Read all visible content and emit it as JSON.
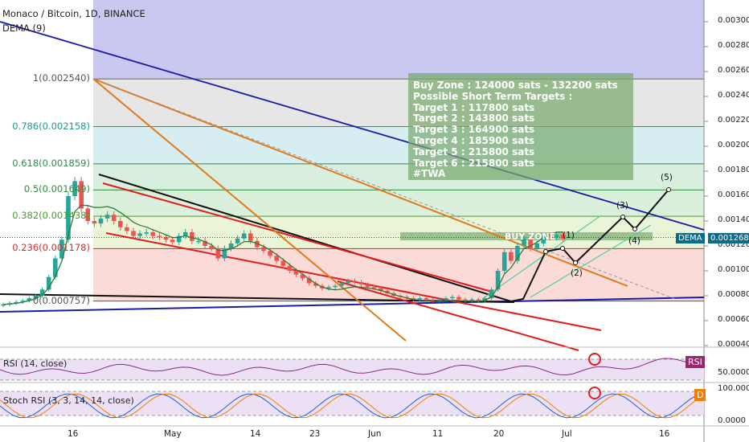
{
  "header": {
    "title": "Monaco / Bitcoin, 1D, BINANCE",
    "indicator": "DEMA (9)"
  },
  "fib_levels": [
    {
      "label": "1(0.002540)",
      "price": 0.00254,
      "color": "#555555"
    },
    {
      "label": "0.786(0.002158)",
      "price": 0.002158,
      "color": "#1e9a8a"
    },
    {
      "label": "0.618(0.001859)",
      "price": 0.001859,
      "color": "#2e8b57"
    },
    {
      "label": "0.5(0.001649)",
      "price": 0.001649,
      "color": "#2e8b3a"
    },
    {
      "label": "0.382(0.001438)",
      "price": 0.001438,
      "color": "#4a9a2a"
    },
    {
      "label": "0.236(0.001178)",
      "price": 0.001178,
      "color": "#d32f2f"
    },
    {
      "label": "0(0.000757)",
      "price": 0.000757,
      "color": "#555555"
    }
  ],
  "note": {
    "lines": [
      "Buy Zone : 124000 sats - 132200 sats",
      "Possible Short Term Targets :",
      "Target 1 : 117800 sats",
      "Target 2 : 143800 sats",
      "Target 3 : 164900 sats",
      "Target 4 : 185900 sats",
      "Target 5 : 215800 sats",
      "Target 6 : 215800 sats",
      "#TWA"
    ]
  },
  "buy_zone_label": "BUY ZONE",
  "waves": [
    "(1)",
    "(2)",
    "(3)",
    "(4)",
    "(5)"
  ],
  "price_badge": {
    "name": "DEMA",
    "value": "0.001268",
    "price": 0.001268
  },
  "rsi_pane": {
    "label": "RSI (14, close)",
    "badge": "RSI",
    "tick": "50.0000"
  },
  "stoch_pane": {
    "label": "Stoch RSI (3, 3, 14, 14, close)",
    "badge": "D",
    "ticks": [
      "100.0000",
      "0.0000"
    ]
  },
  "colors": {
    "candle_up": "#26a69a",
    "candle_down": "#ef5350",
    "dema": "#2e7d32",
    "downtrend": "#1a1aa8",
    "badge_bg": "#0d6b8a",
    "rsi_badge": "#a0246d",
    "stoch_badge": "#f57c00"
  },
  "chart_data": {
    "type": "candlestick",
    "title": "Monaco / Bitcoin, 1D, BINANCE",
    "y_axis_ticks": [
      "0.003000",
      "0.002800",
      "0.002600",
      "0.002400",
      "0.002200",
      "0.002000",
      "0.001800",
      "0.001600",
      "0.001400",
      "0.001200",
      "0.001000",
      "0.000800",
      "0.000600",
      "0.000400"
    ],
    "y_tick_values": [
      0.003,
      0.0028,
      0.0026,
      0.0024,
      0.0022,
      0.002,
      0.0018,
      0.0016,
      0.0014,
      0.0012,
      0.001,
      0.0008,
      0.0006,
      0.0004
    ],
    "x_axis_ticks": [
      "16",
      "May",
      "14",
      "23",
      "Jun",
      "11",
      "20",
      "Jul",
      "16"
    ],
    "close_series": [
      0.00073,
      0.00074,
      0.00075,
      0.00076,
      0.00078,
      0.0008,
      0.00085,
      0.00095,
      0.0011,
      0.00125,
      0.0016,
      0.00172,
      0.0015,
      0.0014,
      0.00138,
      0.00142,
      0.00145,
      0.0014,
      0.00135,
      0.00132,
      0.00128,
      0.0013,
      0.00131,
      0.00128,
      0.00127,
      0.00125,
      0.00123,
      0.00128,
      0.00131,
      0.00124,
      0.00124,
      0.0012,
      0.00118,
      0.0011,
      0.00118,
      0.00122,
      0.00126,
      0.0013,
      0.00124,
      0.00119,
      0.00116,
      0.00112,
      0.00108,
      0.00104,
      0.001,
      0.00097,
      0.00094,
      0.0009,
      0.00088,
      0.00086,
      0.00087,
      0.00088,
      0.0009,
      0.00092,
      0.00091,
      0.00089,
      0.00087,
      0.00086,
      0.00084,
      0.00082,
      0.0008,
      0.00079,
      0.00078,
      0.00077,
      0.00078,
      0.00077,
      0.00076,
      0.00077,
      0.00078,
      0.00079,
      0.00077,
      0.00076,
      0.00077,
      0.00076,
      0.00078,
      0.00085,
      0.001,
      0.00115,
      0.00108,
      0.0012,
      0.00126,
      0.00118,
      0.00122,
      0.00128,
      0.00127,
      0.00129,
      0.00126
    ],
    "dema_last": 0.001268
  }
}
